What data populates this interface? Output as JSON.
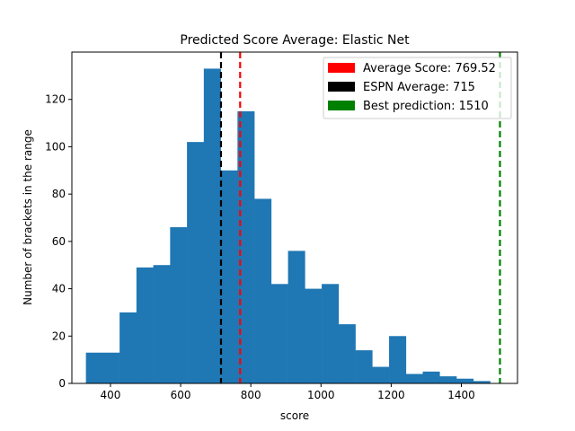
{
  "chart_data": {
    "type": "bar",
    "title": "Predicted Score Average: Elastic Net",
    "xlabel": "score",
    "ylabel": "Number of brackets in the range",
    "xlim": [
      290,
      1560
    ],
    "ylim": [
      0,
      140
    ],
    "xticks": [
      400,
      600,
      800,
      1000,
      1200,
      1400
    ],
    "yticks": [
      0,
      20,
      40,
      60,
      80,
      100,
      120
    ],
    "bar_color": "#1f77b4",
    "bins": [
      {
        "x0": 330,
        "x1": 378,
        "value": 13
      },
      {
        "x0": 378,
        "x1": 426,
        "value": 13
      },
      {
        "x0": 426,
        "x1": 474,
        "value": 30
      },
      {
        "x0": 474,
        "x1": 522,
        "value": 49
      },
      {
        "x0": 522,
        "x1": 570,
        "value": 50
      },
      {
        "x0": 570,
        "x1": 618,
        "value": 66
      },
      {
        "x0": 618,
        "x1": 666,
        "value": 102
      },
      {
        "x0": 666,
        "x1": 714,
        "value": 133
      },
      {
        "x0": 714,
        "x1": 762,
        "value": 90
      },
      {
        "x0": 762,
        "x1": 810,
        "value": 115
      },
      {
        "x0": 810,
        "x1": 858,
        "value": 78
      },
      {
        "x0": 858,
        "x1": 906,
        "value": 42
      },
      {
        "x0": 906,
        "x1": 954,
        "value": 56
      },
      {
        "x0": 954,
        "x1": 1002,
        "value": 40
      },
      {
        "x0": 1002,
        "x1": 1050,
        "value": 42
      },
      {
        "x0": 1050,
        "x1": 1098,
        "value": 25
      },
      {
        "x0": 1098,
        "x1": 1146,
        "value": 14
      },
      {
        "x0": 1146,
        "x1": 1194,
        "value": 7
      },
      {
        "x0": 1194,
        "x1": 1242,
        "value": 20
      },
      {
        "x0": 1242,
        "x1": 1290,
        "value": 4
      },
      {
        "x0": 1290,
        "x1": 1338,
        "value": 5
      },
      {
        "x0": 1338,
        "x1": 1386,
        "value": 3
      },
      {
        "x0": 1386,
        "x1": 1434,
        "value": 2
      },
      {
        "x0": 1434,
        "x1": 1482,
        "value": 1
      }
    ],
    "reference_lines": [
      {
        "name": "average-score",
        "x": 769.52,
        "color": "#ff0000",
        "label": "Average Score: 769.52"
      },
      {
        "name": "espn-average",
        "x": 715,
        "color": "#000000",
        "label": "ESPN Average: 715"
      },
      {
        "name": "best-prediction",
        "x": 1510,
        "color": "#008000",
        "label": "Best prediction: 1510"
      }
    ],
    "legend_position": "top-right"
  }
}
